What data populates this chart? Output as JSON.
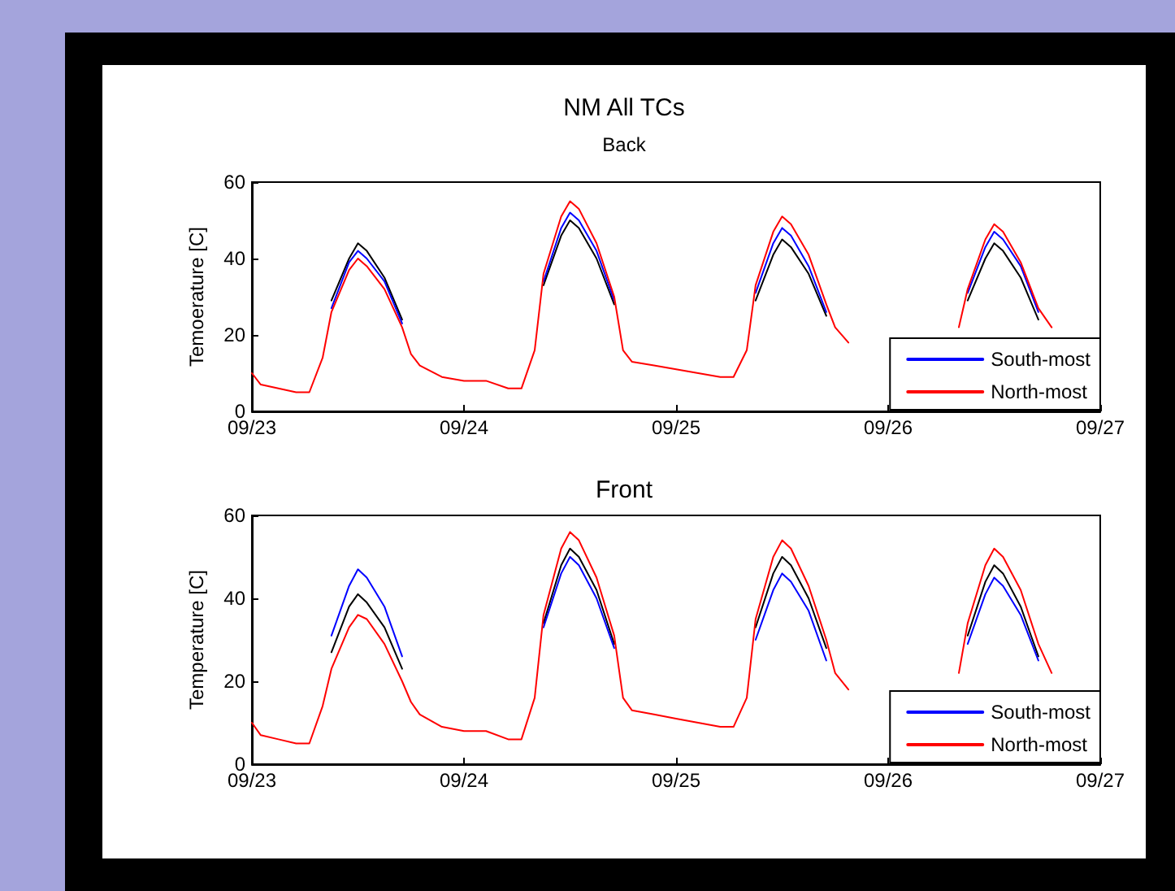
{
  "chart_data": [
    {
      "type": "line",
      "title": "NM All TCs",
      "subtitle": "Back",
      "ylabel": "Temoerature [C]",
      "x": [
        "--09-23T00:00",
        "--09-23T01:00",
        "--09-23T03:00",
        "--09-23T05:00",
        "--09-23T06:30",
        "--09-23T08:00",
        "--09-23T09:00",
        "--09-23T11:00",
        "--09-23T12:00",
        "--09-23T13:00",
        "--09-23T15:00",
        "--09-23T17:00",
        "--09-23T18:00",
        "--09-23T19:00",
        "--09-23T21:30",
        "--09-24T00:00",
        "--09-24T02:30",
        "--09-24T05:00",
        "--09-24T06:30",
        "--09-24T08:00",
        "--09-24T09:00",
        "--09-24T11:00",
        "--09-24T12:00",
        "--09-24T13:00",
        "--09-24T15:00",
        "--09-24T17:00",
        "--09-24T18:00",
        "--09-24T19:00",
        "--09-24T21:30",
        "--09-25T00:00",
        "--09-25T02:30",
        "--09-25T05:00",
        "--09-25T06:30",
        "--09-25T08:00",
        "--09-25T09:00",
        "--09-25T11:00",
        "--09-25T12:00",
        "--09-25T13:00",
        "--09-25T15:00",
        "--09-25T17:00",
        "--09-25T18:00",
        "--09-25T19:30",
        "--09-25T21:30",
        "--09-26T08:00",
        "--09-26T09:00",
        "--09-26T11:00",
        "--09-26T12:00",
        "--09-26T13:00",
        "--09-26T15:00",
        "--09-26T17:00",
        "--09-26T18:30"
      ],
      "xlim": [
        "--09-23",
        "--09-27"
      ],
      "xticks": [
        {
          "value": "--09-23",
          "label": "09/23"
        },
        {
          "value": "--09-24",
          "label": "09/24"
        },
        {
          "value": "--09-25",
          "label": "09/25"
        },
        {
          "value": "--09-26",
          "label": "09/26"
        },
        {
          "value": "--09-27",
          "label": "09/27"
        }
      ],
      "ylim": [
        0,
        60
      ],
      "yticks": [
        0,
        20,
        40,
        60
      ],
      "grid": false,
      "legend": "bottom right",
      "marker": "none",
      "line_style": "solid",
      "series": [
        {
          "color": "#000000",
          "values": [
            null,
            null,
            null,
            null,
            null,
            null,
            29,
            40,
            44,
            42,
            35,
            24,
            null,
            null,
            null,
            null,
            null,
            null,
            null,
            null,
            33,
            46,
            50,
            48,
            40,
            28,
            null,
            null,
            null,
            null,
            null,
            null,
            null,
            null,
            29,
            41,
            45,
            43,
            36,
            25,
            null,
            null,
            null,
            null,
            29,
            40,
            44,
            42,
            35,
            24,
            null
          ]
        },
        {
          "name": "South-most",
          "color": "#0000ff",
          "values": [
            null,
            null,
            null,
            null,
            null,
            null,
            27,
            39,
            42,
            40,
            34,
            23,
            null,
            null,
            null,
            null,
            null,
            null,
            null,
            null,
            34,
            48,
            52,
            50,
            42,
            29,
            null,
            null,
            null,
            null,
            null,
            null,
            null,
            null,
            31,
            44,
            48,
            46,
            38,
            26,
            null,
            null,
            null,
            null,
            31,
            43,
            47,
            45,
            38,
            26,
            null
          ]
        },
        {
          "name": "North-most",
          "color": "#ff0000",
          "values": [
            10,
            7,
            6,
            5,
            5,
            14,
            26,
            37,
            40,
            38,
            32,
            22,
            15,
            12,
            9,
            8,
            8,
            6,
            6,
            16,
            36,
            51,
            55,
            53,
            44,
            30,
            16,
            13,
            12,
            11,
            10,
            9,
            9,
            16,
            33,
            47,
            51,
            49,
            41,
            28,
            22,
            18,
            null,
            22,
            32,
            45,
            49,
            47,
            39,
            27,
            22
          ]
        }
      ]
    },
    {
      "type": "line",
      "title": "Front",
      "ylabel": "Temperature [C]",
      "x": [
        "--09-23T00:00",
        "--09-23T01:00",
        "--09-23T03:00",
        "--09-23T05:00",
        "--09-23T06:30",
        "--09-23T08:00",
        "--09-23T09:00",
        "--09-23T11:00",
        "--09-23T12:00",
        "--09-23T13:00",
        "--09-23T15:00",
        "--09-23T17:00",
        "--09-23T18:00",
        "--09-23T19:00",
        "--09-23T21:30",
        "--09-24T00:00",
        "--09-24T02:30",
        "--09-24T05:00",
        "--09-24T06:30",
        "--09-24T08:00",
        "--09-24T09:00",
        "--09-24T11:00",
        "--09-24T12:00",
        "--09-24T13:00",
        "--09-24T15:00",
        "--09-24T17:00",
        "--09-24T18:00",
        "--09-24T19:00",
        "--09-24T21:30",
        "--09-25T00:00",
        "--09-25T02:30",
        "--09-25T05:00",
        "--09-25T06:30",
        "--09-25T08:00",
        "--09-25T09:00",
        "--09-25T11:00",
        "--09-25T12:00",
        "--09-25T13:00",
        "--09-25T15:00",
        "--09-25T17:00",
        "--09-25T18:00",
        "--09-25T19:30",
        "--09-25T21:30",
        "--09-26T08:00",
        "--09-26T09:00",
        "--09-26T11:00",
        "--09-26T12:00",
        "--09-26T13:00",
        "--09-26T15:00",
        "--09-26T17:00",
        "--09-26T18:30"
      ],
      "xlim": [
        "--09-23",
        "--09-27"
      ],
      "xticks": [
        {
          "value": "--09-23",
          "label": "09/23"
        },
        {
          "value": "--09-24",
          "label": "09/24"
        },
        {
          "value": "--09-25",
          "label": "09/25"
        },
        {
          "value": "--09-26",
          "label": "09/26"
        },
        {
          "value": "--09-27",
          "label": "09/27"
        }
      ],
      "ylim": [
        0,
        60
      ],
      "yticks": [
        0,
        20,
        40,
        60
      ],
      "grid": false,
      "legend": "bottom right",
      "marker": "none",
      "line_style": "solid",
      "series": [
        {
          "color": "#000000",
          "values": [
            null,
            null,
            null,
            null,
            null,
            null,
            27,
            38,
            41,
            39,
            33,
            23,
            null,
            null,
            null,
            null,
            null,
            null,
            null,
            null,
            34,
            48,
            52,
            50,
            42,
            29,
            null,
            null,
            null,
            null,
            null,
            null,
            null,
            null,
            33,
            46,
            50,
            48,
            40,
            28,
            null,
            null,
            null,
            null,
            31,
            44,
            48,
            46,
            38,
            26,
            null
          ]
        },
        {
          "name": "South-most",
          "color": "#0000ff",
          "values": [
            null,
            null,
            null,
            null,
            null,
            null,
            31,
            43,
            47,
            45,
            38,
            26,
            null,
            null,
            null,
            null,
            null,
            null,
            null,
            null,
            33,
            46,
            50,
            48,
            40,
            28,
            null,
            null,
            null,
            null,
            null,
            null,
            null,
            null,
            30,
            42,
            46,
            44,
            37,
            25,
            null,
            null,
            null,
            null,
            29,
            41,
            45,
            43,
            36,
            25,
            null
          ]
        },
        {
          "name": "North-most",
          "color": "#ff0000",
          "values": [
            10,
            7,
            6,
            5,
            5,
            14,
            23,
            33,
            36,
            35,
            29,
            20,
            15,
            12,
            9,
            8,
            8,
            6,
            6,
            16,
            36,
            52,
            56,
            54,
            45,
            31,
            16,
            13,
            12,
            11,
            10,
            9,
            9,
            16,
            35,
            50,
            54,
            52,
            43,
            30,
            22,
            18,
            null,
            22,
            34,
            48,
            52,
            50,
            42,
            29,
            22
          ]
        }
      ]
    }
  ]
}
